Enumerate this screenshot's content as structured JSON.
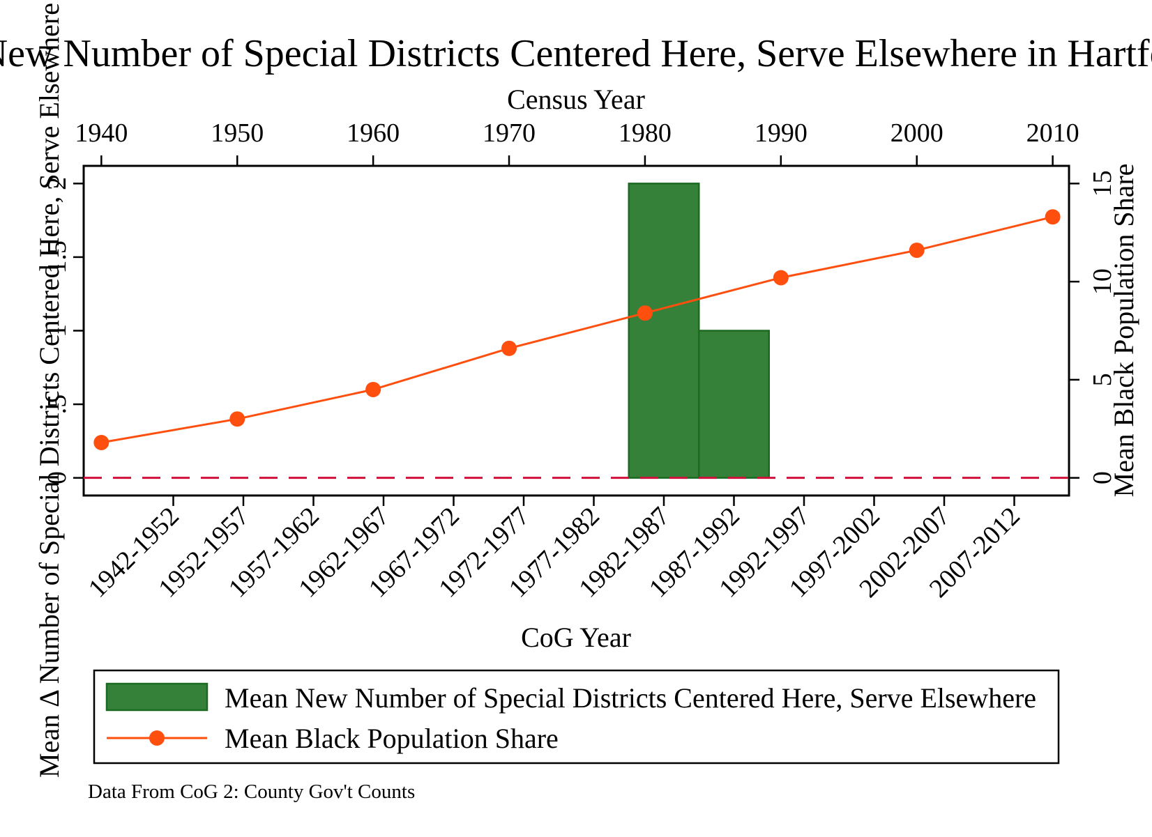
{
  "chart_data": {
    "type": "bar",
    "title": "Mean New Number of Special Districts Centered Here, Serve Elsewhere in Hartford, CT",
    "note": "Data From CoG 2: County Gov't Counts",
    "x_bottom": {
      "label": "CoG Year",
      "categories": [
        "1942-1952",
        "1952-1957",
        "1957-1962",
        "1962-1967",
        "1967-1972",
        "1972-1977",
        "1977-1982",
        "1982-1987",
        "1987-1992",
        "1992-1997",
        "1997-2002",
        "2002-2007",
        "2007-2012"
      ]
    },
    "x_top": {
      "label": "Census Year",
      "ticks": [
        1940,
        1950,
        1960,
        1970,
        1980,
        1990,
        2000,
        2010
      ],
      "range": [
        1938.7,
        2011.2
      ]
    },
    "y_left": {
      "label": "Mean Δ Number of Special Districts Centered Here, Serve Elsewhere",
      "ticks": [
        0,
        0.5,
        1,
        1.5,
        2
      ],
      "tick_labels": [
        "0",
        ".5",
        "1",
        "1.5",
        "2"
      ],
      "range": [
        -0.12,
        2.12
      ]
    },
    "y_right": {
      "label": "Mean Black Population Share",
      "ticks": [
        0,
        5,
        10,
        15
      ],
      "range": [
        -0.9,
        15.9
      ]
    },
    "series": [
      {
        "name": "Mean New Number of Special Districts Centered Here, Serve Elsewhere",
        "kind": "bar",
        "axis": "left",
        "color": "#35813a",
        "edge_color": "#1b6a20",
        "values": [
          0,
          0,
          0,
          0,
          0,
          0,
          0,
          2,
          1,
          0,
          0,
          0,
          0
        ]
      },
      {
        "name": "Mean Black Population Share",
        "kind": "line",
        "axis": "right",
        "color": "#ff4f0f",
        "x": [
          1940,
          1950,
          1960,
          1970,
          1980,
          1990,
          2000,
          2010
        ],
        "values": [
          1.8,
          3.0,
          4.5,
          6.6,
          8.4,
          10.2,
          11.6,
          13.3
        ]
      }
    ],
    "reference_line": {
      "axis": "left",
      "value": 0,
      "color": "#d0103a",
      "style": "dashed"
    },
    "legend": {
      "position": "bottom"
    },
    "grid": false
  }
}
